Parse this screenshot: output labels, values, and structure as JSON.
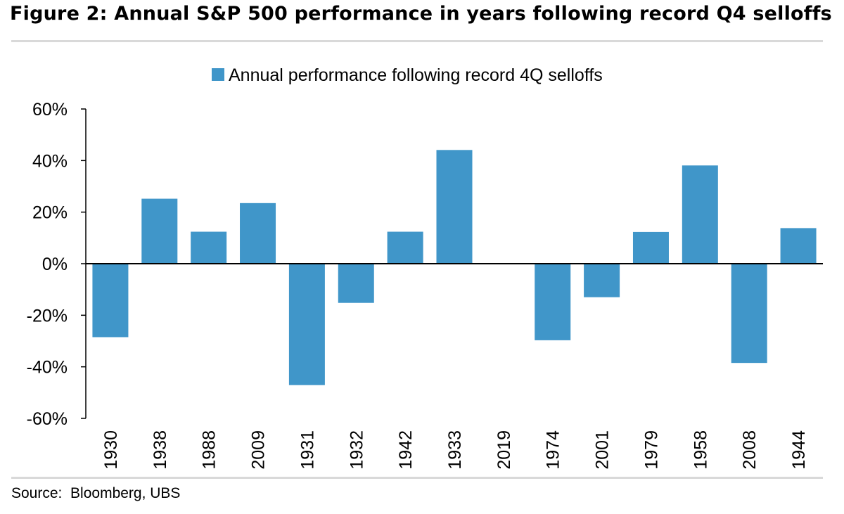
{
  "title": "Figure 2: Annual S&P 500 performance in years following record Q4 selloffs",
  "source": "Source:  Bloomberg, UBS",
  "chart_data": {
    "type": "bar",
    "title": "Figure 2: Annual S&P 500 performance in years following record Q4 selloffs",
    "xlabel": "",
    "ylabel": "",
    "categories": [
      "1930",
      "1938",
      "1988",
      "2009",
      "1931",
      "1932",
      "1942",
      "1933",
      "2019",
      "1974",
      "2001",
      "1979",
      "1958",
      "2008",
      "1944"
    ],
    "series": [
      {
        "name": "Annual performance following record 4Q selloffs",
        "values": [
          -28.5,
          25.2,
          12.4,
          23.5,
          -47.1,
          -15.2,
          12.4,
          44.1,
          0,
          -29.7,
          -13.0,
          12.3,
          38.1,
          -38.5,
          13.8
        ],
        "color": "#4096c9"
      }
    ],
    "ylim": [
      -60,
      60
    ],
    "yticks": [
      60,
      40,
      20,
      0,
      -20,
      -40,
      -60
    ],
    "ytick_labels": [
      "60%",
      "40%",
      "20%",
      "0%",
      "-20%",
      "-40%",
      "-60%"
    ],
    "legend_position": "top-center",
    "grid": false
  }
}
